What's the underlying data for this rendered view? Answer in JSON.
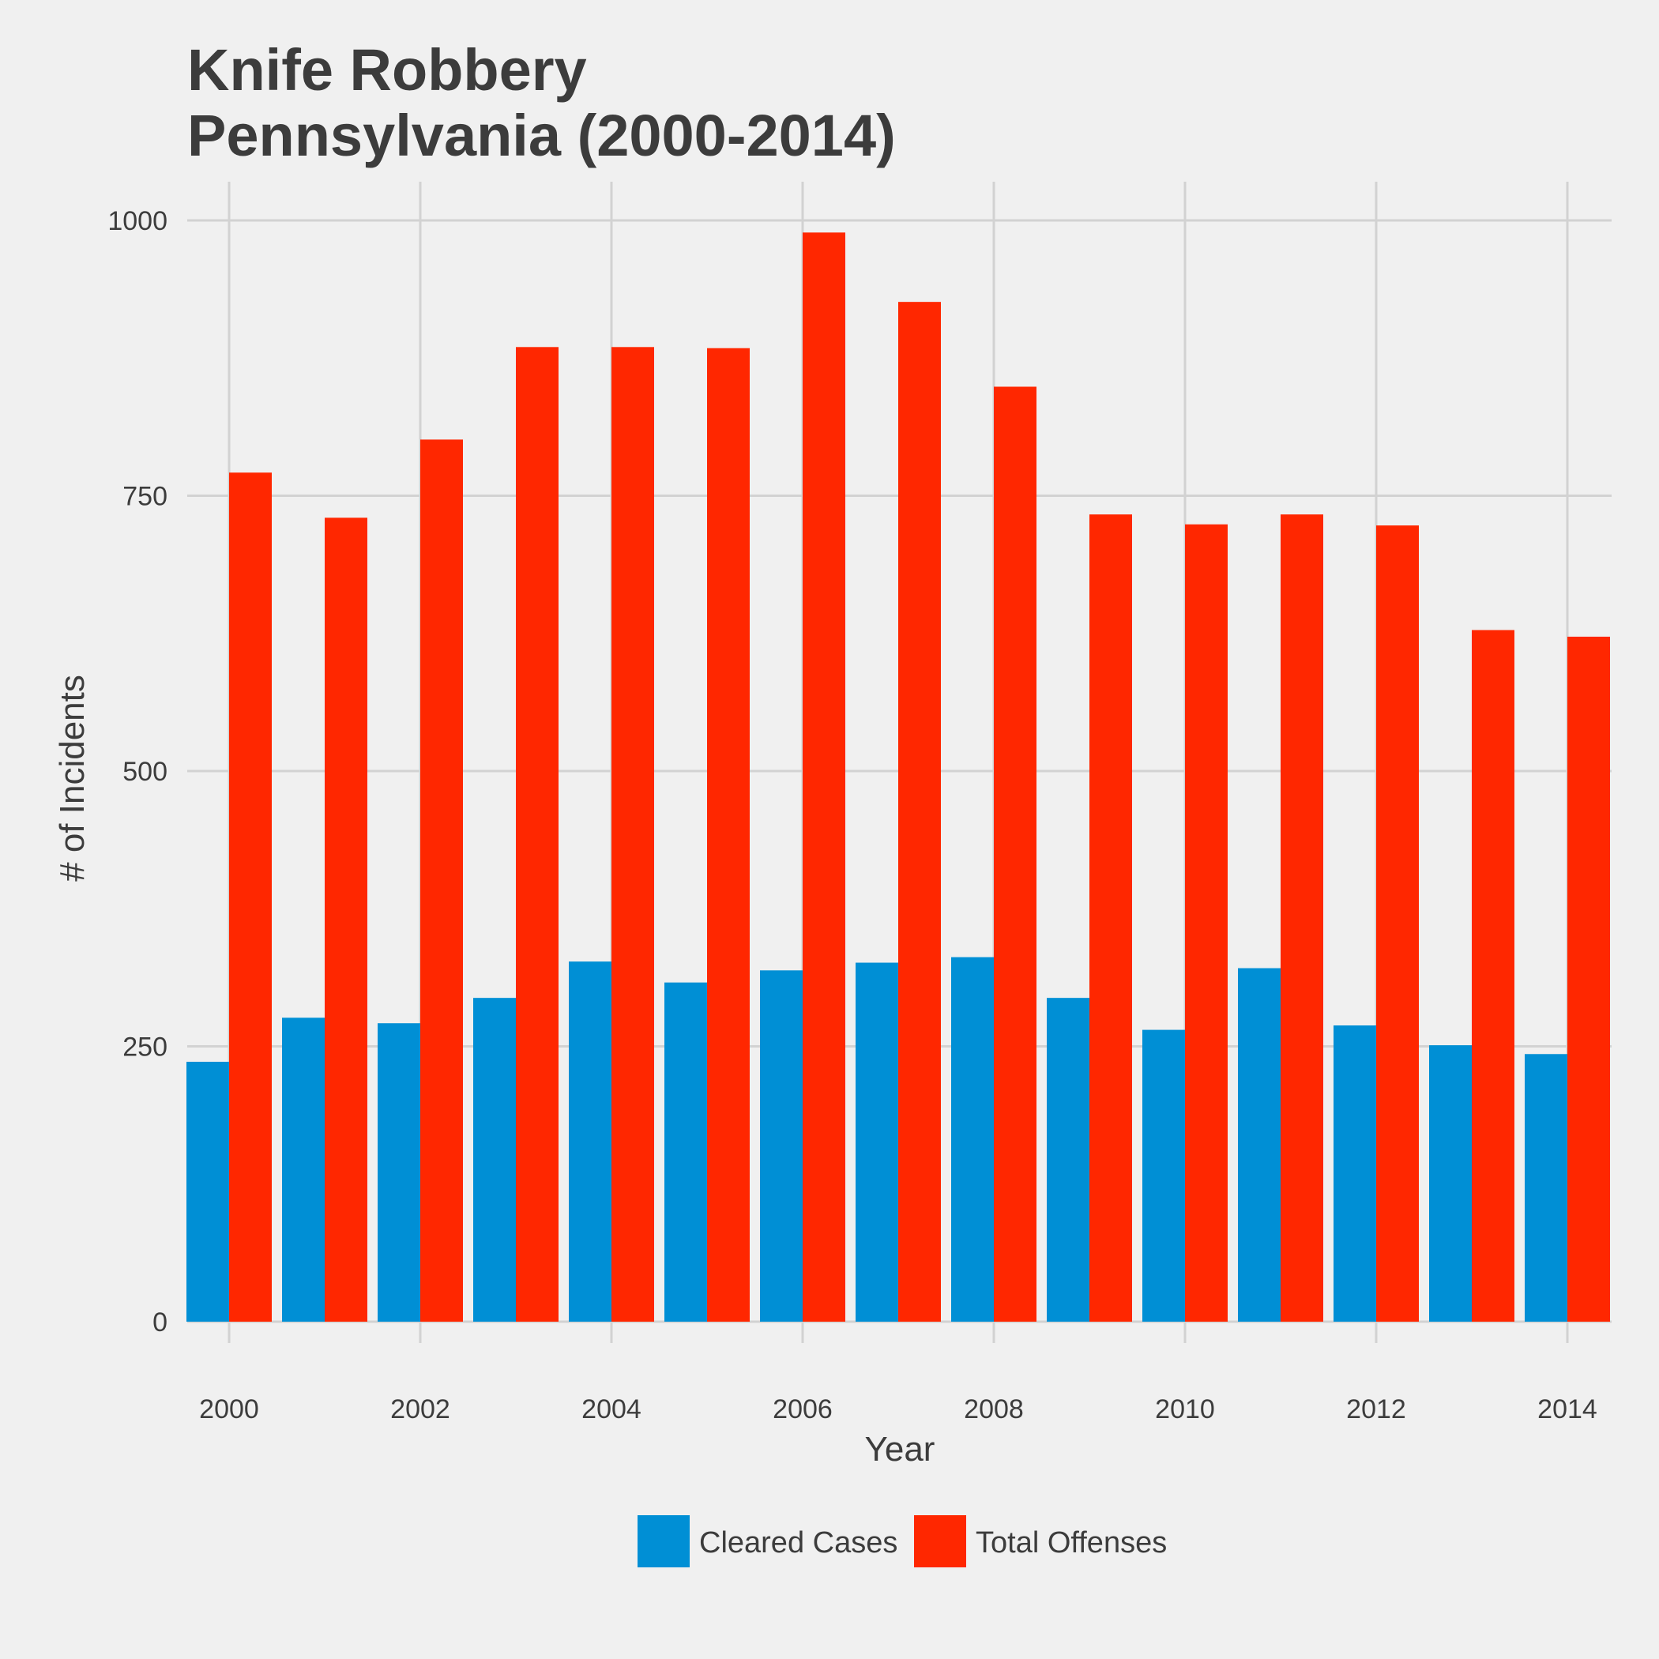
{
  "chart_data": {
    "type": "bar",
    "title": "Knife Robbery",
    "subtitle": "Pennsylvania (2000-2014)",
    "xlabel": "Year",
    "ylabel": "# of Incidents",
    "x": [
      2000,
      2001,
      2002,
      2003,
      2004,
      2005,
      2006,
      2007,
      2008,
      2009,
      2010,
      2011,
      2012,
      2013,
      2014
    ],
    "x_ticks": [
      "2000",
      "2002",
      "2004",
      "2006",
      "2008",
      "2010",
      "2012",
      "2014"
    ],
    "y_ticks": [
      "0",
      "250",
      "500",
      "750",
      "1000"
    ],
    "ylim": [
      0,
      1000
    ],
    "grid": true,
    "legend_position": "bottom",
    "series": [
      {
        "name": "Cleared Cases",
        "color": "#008fd5",
        "values": [
          236,
          276,
          271,
          294,
          327,
          308,
          319,
          326,
          331,
          294,
          265,
          321,
          269,
          251,
          243
        ]
      },
      {
        "name": "Total Offenses",
        "color": "#ff2700",
        "values": [
          771,
          730,
          801,
          885,
          885,
          884,
          989,
          926,
          849,
          733,
          724,
          733,
          723,
          628,
          622
        ]
      }
    ]
  }
}
